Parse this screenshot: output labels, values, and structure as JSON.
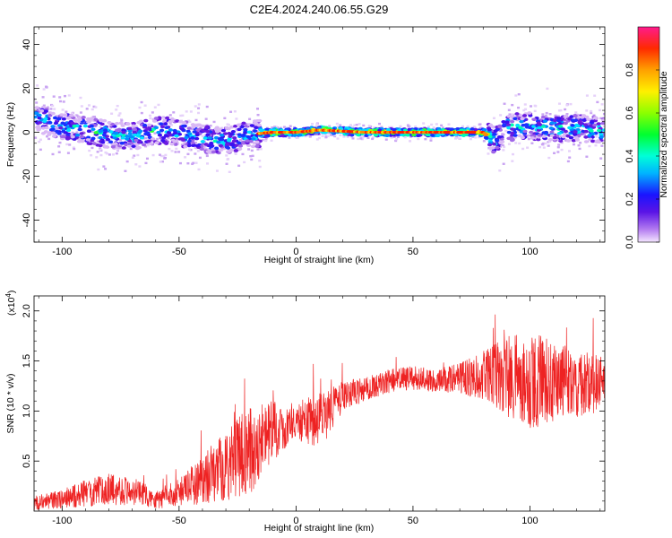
{
  "title": "C2E4.2024.240.06.55.G29",
  "chart_data": [
    {
      "type": "heatmap",
      "xlabel": "Height of straight line (km)",
      "ylabel": "Frequency (Hz)",
      "xlim": [
        -112,
        132
      ],
      "ylim": [
        -50,
        48
      ],
      "xticks": [
        -100,
        -50,
        0,
        50,
        100
      ],
      "yticks": [
        -40,
        -20,
        0,
        20,
        40
      ],
      "ridge": [
        {
          "x": -110,
          "y": 6
        },
        {
          "x": -100,
          "y": 3
        },
        {
          "x": -90,
          "y": 1
        },
        {
          "x": -80,
          "y": -1
        },
        {
          "x": -70,
          "y": -2
        },
        {
          "x": -60,
          "y": 1
        },
        {
          "x": -50,
          "y": 0
        },
        {
          "x": -40,
          "y": -3
        },
        {
          "x": -30,
          "y": -4
        },
        {
          "x": -20,
          "y": -1
        },
        {
          "x": -10,
          "y": 0
        },
        {
          "x": 0,
          "y": 0
        },
        {
          "x": 10,
          "y": 1
        },
        {
          "x": 30,
          "y": 0
        },
        {
          "x": 60,
          "y": 0
        },
        {
          "x": 80,
          "y": 0
        },
        {
          "x": 85,
          "y": -4
        },
        {
          "x": 90,
          "y": 2
        },
        {
          "x": 100,
          "y": 3
        },
        {
          "x": 110,
          "y": 2
        },
        {
          "x": 120,
          "y": 2
        },
        {
          "x": 130,
          "y": 1
        }
      ],
      "colorbar": {
        "label": "Normalized spectral amplitude",
        "range": [
          0,
          1
        ],
        "ticks": [
          "0.0",
          "0.2",
          "0.4",
          "0.6",
          "0.8"
        ]
      }
    },
    {
      "type": "line",
      "xlabel": "Height of straight line (km)",
      "ylabel": "SNR (10 * v/v)",
      "multiplier": "(x10",
      "multiplier_exp": "4",
      "multiplier_close": ")",
      "xlim": [
        -112,
        132
      ],
      "ylim": [
        0,
        2.15
      ],
      "xticks": [
        -100,
        -50,
        0,
        50,
        100
      ],
      "yticks": [
        "0.5",
        "1.0",
        "1.5",
        "2.0"
      ],
      "series": [
        {
          "color": "#ee2222",
          "envelope": [
            {
              "x": -112,
              "mean": 0.08,
              "amp": 0.07
            },
            {
              "x": -100,
              "mean": 0.12,
              "amp": 0.1
            },
            {
              "x": -90,
              "mean": 0.18,
              "amp": 0.14
            },
            {
              "x": -80,
              "mean": 0.22,
              "amp": 0.16
            },
            {
              "x": -70,
              "mean": 0.2,
              "amp": 0.14
            },
            {
              "x": -60,
              "mean": 0.12,
              "amp": 0.1
            },
            {
              "x": -50,
              "mean": 0.18,
              "amp": 0.14
            },
            {
              "x": -40,
              "mean": 0.32,
              "amp": 0.25
            },
            {
              "x": -30,
              "mean": 0.45,
              "amp": 0.35
            },
            {
              "x": -20,
              "mean": 0.6,
              "amp": 0.45
            },
            {
              "x": -10,
              "mean": 0.8,
              "amp": 0.3
            },
            {
              "x": 0,
              "mean": 0.9,
              "amp": 0.18
            },
            {
              "x": 10,
              "mean": 0.9,
              "amp": 0.3
            },
            {
              "x": 20,
              "mean": 1.15,
              "amp": 0.15
            },
            {
              "x": 30,
              "mean": 1.22,
              "amp": 0.12
            },
            {
              "x": 40,
              "mean": 1.3,
              "amp": 0.12
            },
            {
              "x": 50,
              "mean": 1.33,
              "amp": 0.12
            },
            {
              "x": 60,
              "mean": 1.3,
              "amp": 0.12
            },
            {
              "x": 70,
              "mean": 1.33,
              "amp": 0.15
            },
            {
              "x": 80,
              "mean": 1.35,
              "amp": 0.25
            },
            {
              "x": 90,
              "mean": 1.35,
              "amp": 0.4
            },
            {
              "x": 100,
              "mean": 1.3,
              "amp": 0.5
            },
            {
              "x": 110,
              "mean": 1.3,
              "amp": 0.4
            },
            {
              "x": 120,
              "mean": 1.28,
              "amp": 0.35
            },
            {
              "x": 132,
              "mean": 1.3,
              "amp": 0.3
            }
          ]
        }
      ]
    }
  ]
}
